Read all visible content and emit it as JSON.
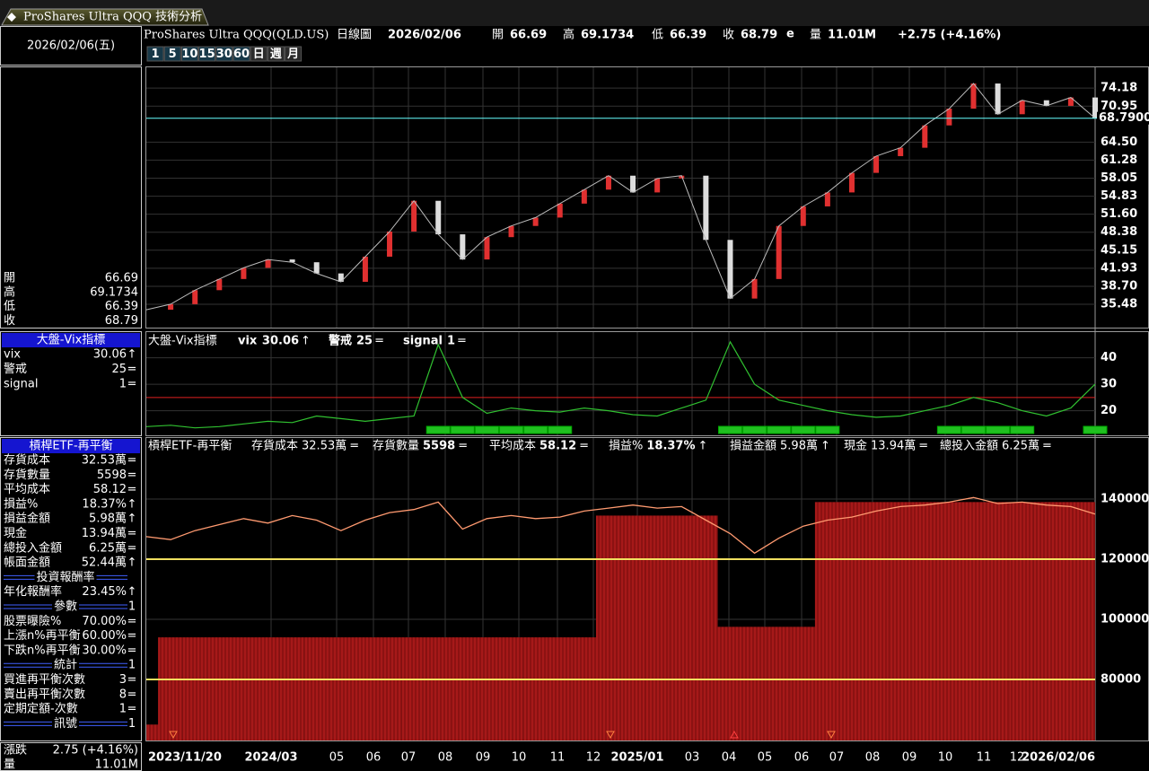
{
  "window_title": "ProShares Ultra QQQ 技術分析",
  "date_box": "2026/02/06(五)",
  "quote": {
    "symbol": "ProShares Ultra QQQ(QLD.US)",
    "period": "日線圖",
    "date": "2026/02/06",
    "open_label": "開",
    "open": "66.69",
    "high_label": "高",
    "high": "69.1734",
    "low_label": "低",
    "low": "66.39",
    "close_label": "收",
    "close": "68.79",
    "close_flag": "e",
    "volume_label": "量",
    "volume": "11.01M",
    "change": "+2.75 (+4.16%)"
  },
  "period_buttons": [
    "1",
    "5",
    "10",
    "15",
    "30",
    "60",
    "日",
    "週",
    "月"
  ],
  "vix": {
    "title": "大盤-Vix指標",
    "rows": [
      {
        "label": "vix",
        "value": "30.06",
        "mark": "↑"
      },
      {
        "label": "警戒",
        "value": "25",
        "mark": "="
      },
      {
        "label": "signal",
        "value": "1",
        "mark": "="
      }
    ]
  },
  "etf": {
    "title": "槓桿ETF-再平衡",
    "rows": [
      {
        "label": "存貨成本",
        "value": "32.53萬",
        "mark": "="
      },
      {
        "label": "存貨數量",
        "value": "5598",
        "mark": "="
      },
      {
        "label": "平均成本",
        "value": "58.12",
        "mark": "="
      },
      {
        "label": "損益%",
        "value": "18.37%",
        "mark": "↑"
      },
      {
        "label": "損益金額",
        "value": "5.98萬",
        "mark": "↑"
      },
      {
        "label": "現金",
        "value": "13.94萬",
        "mark": "="
      },
      {
        "label": "總投入金額",
        "value": "6.25萬",
        "mark": "="
      },
      {
        "label": "帳面金額",
        "value": "52.44萬",
        "mark": "↑"
      },
      {
        "separator": "投資報酬率"
      },
      {
        "label": "年化報酬率",
        "value": "23.45%",
        "mark": "↑"
      },
      {
        "separator": "參數",
        "value": "1"
      },
      {
        "label": "股票曝險%",
        "value": "70.00%",
        "mark": "="
      },
      {
        "label": "上漲n%再平衡",
        "value": "60.00%",
        "mark": "="
      },
      {
        "label": "下跌n%再平衡",
        "value": "30.00%",
        "mark": "="
      },
      {
        "separator": "統計",
        "value": "1"
      },
      {
        "label": "買進再平衡次數",
        "value": "3",
        "mark": "="
      },
      {
        "label": "賣出再平衡次數",
        "value": "8",
        "mark": "="
      },
      {
        "label": "定期定額-次數",
        "value": "1",
        "mark": "="
      },
      {
        "separator": "訊號",
        "value": "1"
      }
    ]
  },
  "footer": {
    "change_label": "漲跌",
    "change": "2.75 (+4.16%)",
    "volume_label": "量",
    "volume": "11.01M"
  },
  "price_chart": {
    "ylim": [
      31.3,
      77.9
    ],
    "yticks": [
      74.18,
      70.95,
      {
        "value": 64.5,
        "label": "64.50"
      },
      61.28,
      58.05,
      54.83,
      {
        "value": 51.6,
        "label": "51.60"
      },
      48.38,
      45.15,
      41.93,
      {
        "value": 38.7,
        "label": "38.70"
      },
      35.48
    ],
    "last": {
      "value": 68.79,
      "label": "68.7900"
    },
    "values": [
      34.5,
      35.5,
      38.0,
      40.0,
      42.0,
      43.5,
      43.0,
      41.0,
      39.5,
      44.0,
      48.5,
      54.0,
      48.0,
      43.5,
      47.5,
      49.5,
      51.0,
      53.5,
      56.0,
      58.5,
      55.5,
      58.0,
      58.5,
      47.0,
      36.5,
      40.0,
      49.5,
      53.0,
      55.5,
      59.0,
      62.0,
      63.5,
      67.5,
      70.5,
      75.0,
      69.5,
      72.0,
      71.0,
      72.5,
      68.79
    ]
  },
  "vix_chart": {
    "ylim": [
      10.7,
      49.7
    ],
    "yticks": [
      40,
      30,
      20
    ],
    "threshold": 25,
    "values": [
      14,
      14.5,
      13.5,
      14,
      15,
      16,
      15.5,
      18,
      17,
      16,
      17,
      18,
      45,
      25,
      19,
      21,
      20,
      19.5,
      21,
      20,
      18.5,
      18,
      21,
      24,
      46,
      30,
      24,
      22,
      20,
      18.5,
      17.5,
      18,
      20,
      22,
      25,
      23,
      20,
      18,
      21,
      30.06
    ],
    "signal": [
      0,
      0,
      0,
      0,
      0,
      0,
      0,
      0,
      0,
      0,
      0,
      0,
      1,
      1,
      1,
      1,
      1,
      1,
      0,
      0,
      0,
      0,
      0,
      0,
      1,
      1,
      1,
      1,
      1,
      0,
      0,
      0,
      0,
      1,
      1,
      1,
      1,
      0,
      0,
      1
    ]
  },
  "etf_chart": {
    "ylim": [
      59700,
      160300
    ],
    "yticks": [
      140000,
      120000,
      100000,
      80000
    ],
    "ref_lines": [
      120000,
      80000
    ],
    "equity": [
      127500,
      126500,
      129500,
      131500,
      133500,
      132000,
      134500,
      133000,
      129500,
      133000,
      135500,
      136500,
      139000,
      130000,
      133500,
      134500,
      133500,
      134000,
      136000,
      137000,
      138000,
      137000,
      137500,
      133000,
      128500,
      122000,
      127000,
      131000,
      133000,
      134000,
      136000,
      137500,
      138000,
      139000,
      140500,
      138500,
      139000,
      138000,
      137500,
      135000
    ],
    "invested": [
      65000,
      94000,
      94000,
      94000,
      94000,
      94000,
      94000,
      94000,
      94000,
      94000,
      94000,
      94000,
      94000,
      94000,
      94000,
      94000,
      94000,
      94000,
      94000,
      134500,
      134500,
      134500,
      134500,
      134500,
      97500,
      97500,
      97500,
      97500,
      139000,
      139000,
      139000,
      139000,
      139000,
      139000,
      139000,
      139000,
      139000,
      139000,
      139000,
      139000
    ]
  },
  "x_axis": [
    "2023/11/20",
    "2024/03",
    "05",
    "06",
    "07",
    "08",
    "09",
    "10",
    "11",
    "12",
    "2025/01",
    "03",
    "04",
    "05",
    "06",
    "07",
    "08",
    "09",
    "10",
    "11",
    "12",
    "2026/02/06"
  ]
}
